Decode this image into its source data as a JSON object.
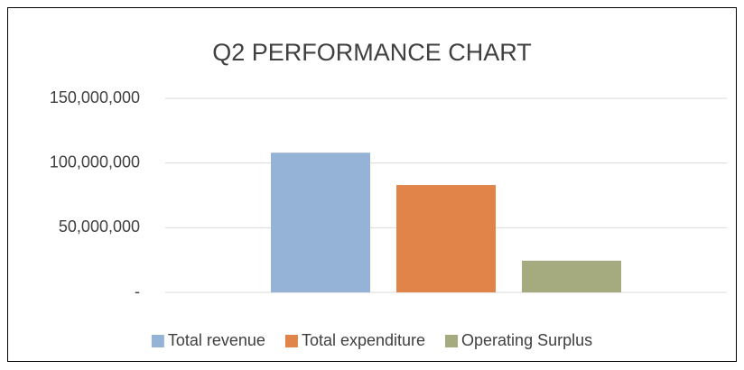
{
  "chart_data": {
    "type": "bar",
    "title": "Q2 PERFORMANCE CHART",
    "categories": [
      null
    ],
    "series": [
      {
        "name": "Total revenue",
        "color": "#95b3d7",
        "values": [
          108000000
        ]
      },
      {
        "name": "Total expenditure",
        "color": "#e0844a",
        "values": [
          83000000
        ]
      },
      {
        "name": "Operating Surplus",
        "color": "#a5ab7f",
        "values": [
          24500000
        ]
      }
    ],
    "ylim": [
      0,
      150000000
    ],
    "yticks": [
      {
        "value": 0,
        "label": "-"
      },
      {
        "value": 50000000,
        "label": "50,000,000"
      },
      {
        "value": 100000000,
        "label": "100,000,000"
      },
      {
        "value": 150000000,
        "label": "150,000,000"
      }
    ],
    "grid": true,
    "legend": "bottom"
  }
}
